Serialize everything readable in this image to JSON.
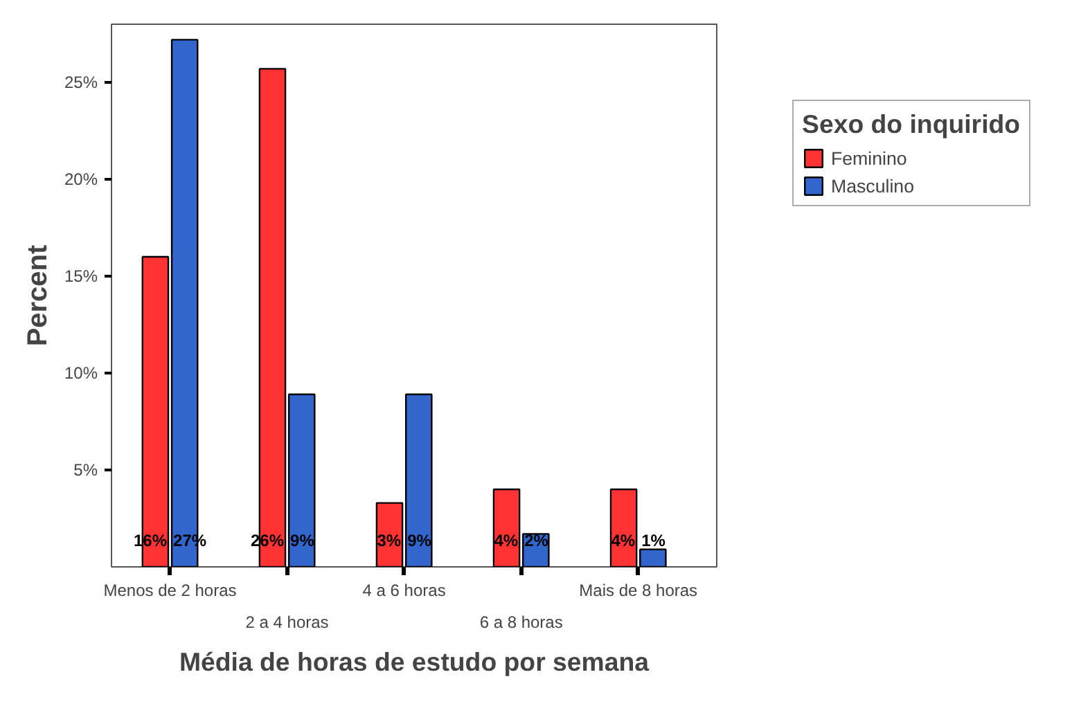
{
  "chart_data": {
    "type": "bar",
    "xlabel": "Média de horas de estudo por semana",
    "ylabel": "Percent",
    "legend_title": "Sexo do inquirido",
    "legend": "top right",
    "categories": [
      "Menos de 2 horas",
      "2 a 4 horas",
      "4 a 6 horas",
      "6 a 8 horas",
      "Mais de 8 horas"
    ],
    "ylim": [
      0,
      28
    ],
    "yticks": [
      {
        "value": 5,
        "label": "5%"
      },
      {
        "value": 10,
        "label": "10%"
      },
      {
        "value": 15,
        "label": "15%"
      },
      {
        "value": 20,
        "label": "20%"
      },
      {
        "value": 25,
        "label": "25%"
      }
    ],
    "series": [
      {
        "name": "Feminino",
        "color": "#ff3333",
        "values": [
          16.0,
          25.7,
          3.3,
          4.0,
          4.0
        ],
        "value_labels": [
          "16%",
          "26%",
          "3%",
          "4%",
          "4%"
        ]
      },
      {
        "name": "Masculino",
        "color": "#3366cc",
        "values": [
          27.2,
          8.9,
          8.9,
          1.7,
          0.9
        ],
        "value_labels": [
          "27%",
          "9%",
          "9%",
          "2%",
          "1%"
        ]
      }
    ]
  }
}
